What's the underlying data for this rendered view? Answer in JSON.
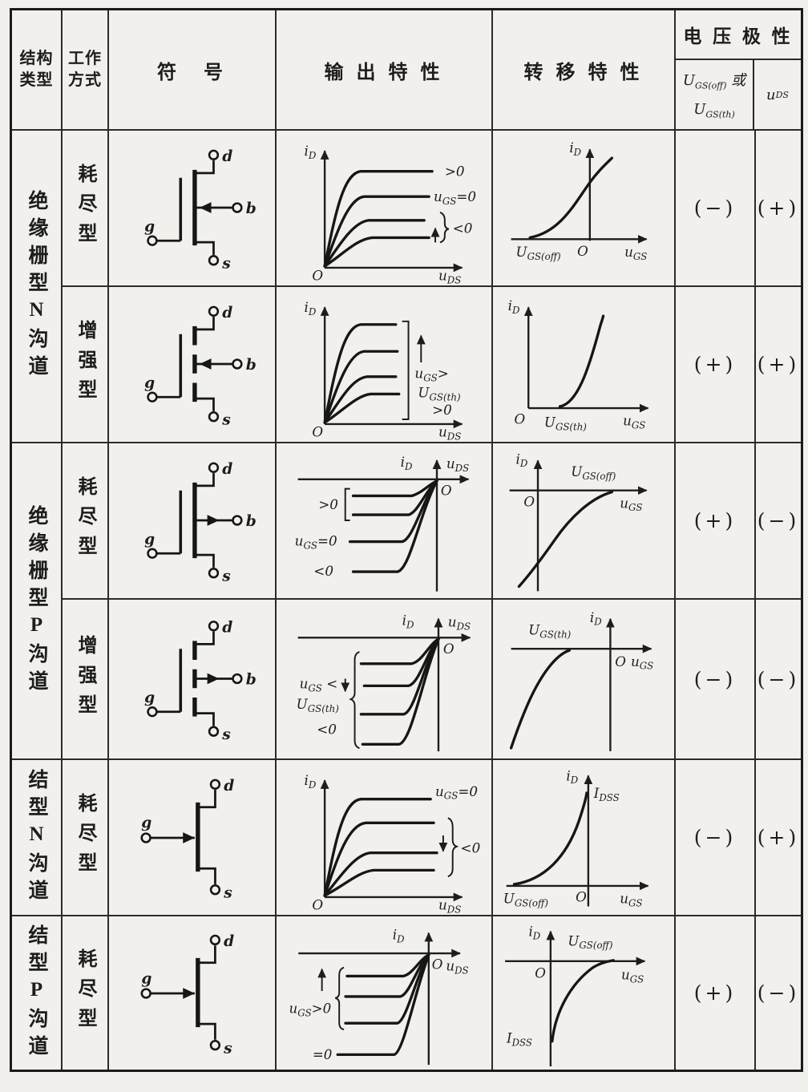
{
  "colors": {
    "paper": "#f2f0ec",
    "ink": "#1d1d1d",
    "grid": "#2b2b2b"
  },
  "header": {
    "structure_line1": "结构",
    "structure_line2": "类型",
    "mode_line1": "工作",
    "mode_line2": "方式",
    "symbol": "符　号",
    "output": "输 出 特 性",
    "transfer": "转 移 特 性",
    "polarity": "电 压 极 性",
    "threshold_line1": "U[GS(off)] 或",
    "threshold_line2": "U[GS(th)]",
    "uds": "u[DS]"
  },
  "groups": [
    {
      "label": "绝缘栅型N沟道"
    },
    {
      "label": "绝缘栅型P沟道"
    },
    {
      "label": "结型N沟道"
    },
    {
      "label": "结型P沟道"
    }
  ],
  "rows": [
    {
      "mode": "耗尽型",
      "terminals": {
        "d": "d",
        "b": "b",
        "g": "g",
        "s": "s"
      },
      "output": {
        "y_axis": "i[D]",
        "x_axis": "u[DS]",
        "origin": "O",
        "curve_top": ">0",
        "curve_mid": "u[GS]=0",
        "curve_low": "<0"
      },
      "transfer": {
        "y_axis": "i[D]",
        "x_axis": "u[GS]",
        "origin": "O",
        "cutoff": "U[GS(off)]"
      },
      "polarity_th": "(−)",
      "polarity_ds": "(+)"
    },
    {
      "mode": "增强型",
      "terminals": {
        "d": "d",
        "b": "b",
        "g": "g",
        "s": "s"
      },
      "output": {
        "y_axis": "i[D]",
        "x_axis": "u[DS]",
        "origin": "O",
        "lbl1": "u[GS]>",
        "lbl2": "U[GS(th)]",
        "lbl3": ">0"
      },
      "transfer": {
        "y_axis": "i[D]",
        "x_axis": "u[GS]",
        "origin": "O",
        "threshold": "U[GS(th)]"
      },
      "polarity_th": "(+)",
      "polarity_ds": "(+)"
    },
    {
      "mode": "耗尽型",
      "terminals": {
        "d": "d",
        "b": "b",
        "g": "g",
        "s": "s"
      },
      "output": {
        "y_axis": "i[D]",
        "x_axis": "u[DS]",
        "origin": "O",
        "curve_top": ">0",
        "curve_mid": "u[GS]=0",
        "curve_low": "<0"
      },
      "transfer": {
        "y_axis": "i[D]",
        "x_axis": "u[GS]",
        "origin": "O",
        "cutoff": "U[GS(off)]"
      },
      "polarity_th": "(+)",
      "polarity_ds": "(−)"
    },
    {
      "mode": "增强型",
      "terminals": {
        "d": "d",
        "b": "b",
        "g": "g",
        "s": "s"
      },
      "output": {
        "y_axis": "i[D]",
        "x_axis": "u[DS]",
        "origin": "O",
        "lbl1": "u[GS] <",
        "lbl2": "U[GS(th)]",
        "lbl3": "<0"
      },
      "transfer": {
        "y_axis": "i[D]",
        "x_axis": "u[GS]",
        "origin": "O",
        "threshold": "U[GS(th)]"
      },
      "polarity_th": "(−)",
      "polarity_ds": "(−)"
    },
    {
      "mode": "耗尽型",
      "terminals": {
        "d": "d",
        "g": "g",
        "s": "s"
      },
      "output": {
        "y_axis": "i[D]",
        "x_axis": "u[DS]",
        "origin": "O",
        "curve_top": "u[GS]=0",
        "curve_low": "<0"
      },
      "transfer": {
        "y_axis": "i[D]",
        "x_axis": "u[GS]",
        "origin": "O",
        "cutoff": "U[GS(off)]",
        "idss": "I[DSS]"
      },
      "polarity_th": "(−)",
      "polarity_ds": "(+)"
    },
    {
      "mode": "耗尽型",
      "terminals": {
        "d": "d",
        "g": "g",
        "s": "s"
      },
      "output": {
        "y_axis": "i[D]",
        "x_axis": "u[DS]",
        "origin": "O",
        "lbl1": "u[GS]>0",
        "lbl2": "=0"
      },
      "transfer": {
        "y_axis": "i[D]",
        "x_axis": "u[GS]",
        "origin": "O",
        "cutoff": "U[GS(off)]",
        "idss": "I[DSS]"
      },
      "polarity_th": "(+)",
      "polarity_ds": "(−)"
    }
  ]
}
